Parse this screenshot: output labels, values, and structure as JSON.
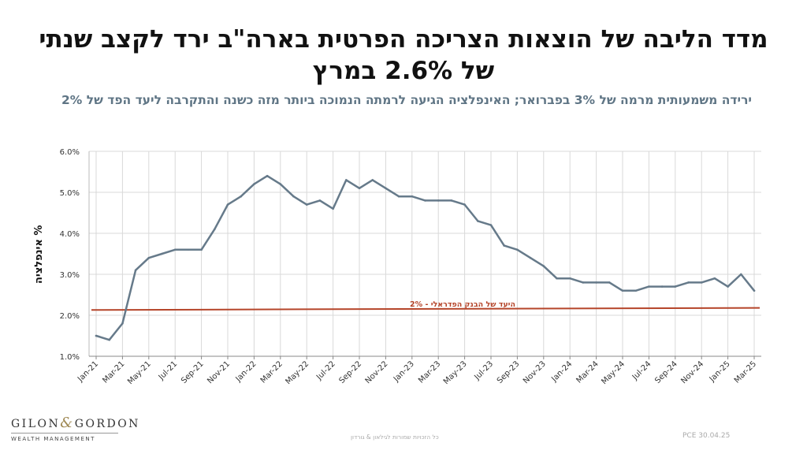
{
  "page": {
    "title": "מדד הליבה של הוצאות הצריכה הפרטית בארה\"ב ירד לקצב שנתי של 2.6% במרץ",
    "subtitle": "ירידה משמעותית מרמה של 3% בפברואר; האינפלציה הגיעה לרמתה הנמוכה ביותר מזה כשנה והתקרבה ליעד הפד של 2%",
    "footer_rights": "כל הזכויות שמורות לגילאון & גורדון",
    "footer_source": "PCE 30.04.25"
  },
  "logo": {
    "name_left": "GILON",
    "amp": "&",
    "name_right": "GORDON",
    "sub": "WEALTH MANAGEMENT"
  },
  "colors": {
    "series": "#667a8a",
    "target": "#b5452a",
    "grid": "#d9d9d9",
    "text": "#333333"
  },
  "chart_data": {
    "type": "line",
    "title": "",
    "xlabel": "",
    "ylabel": "% אינפלציה",
    "ylim": [
      1.0,
      6.0
    ],
    "yticks": [
      "1.0%",
      "2.0%",
      "3.0%",
      "4.0%",
      "5.0%",
      "6.0%"
    ],
    "xtick_labels": [
      "Jan-21",
      "Mar-21",
      "May-21",
      "Jul-21",
      "Sep-21",
      "Nov-21",
      "Jan-22",
      "Mar-22",
      "May-22",
      "Jul-22",
      "Sep-22",
      "Nov-22",
      "Jan-23",
      "Mar-23",
      "May-23",
      "Jul-23",
      "Sep-23",
      "Nov-23",
      "Jan-24",
      "Mar-24",
      "May-24",
      "Jul-24",
      "Sep-24",
      "Nov-24",
      "Jan-25",
      "Mar-25"
    ],
    "grid": true,
    "x": [
      "Jan-21",
      "Feb-21",
      "Mar-21",
      "Apr-21",
      "May-21",
      "Jun-21",
      "Jul-21",
      "Aug-21",
      "Sep-21",
      "Oct-21",
      "Nov-21",
      "Dec-21",
      "Jan-22",
      "Feb-22",
      "Mar-22",
      "Apr-22",
      "May-22",
      "Jun-22",
      "Jul-22",
      "Aug-22",
      "Sep-22",
      "Oct-22",
      "Nov-22",
      "Dec-22",
      "Jan-23",
      "Feb-23",
      "Mar-23",
      "Apr-23",
      "May-23",
      "Jun-23",
      "Jul-23",
      "Aug-23",
      "Sep-23",
      "Oct-23",
      "Nov-23",
      "Dec-23",
      "Jan-24",
      "Feb-24",
      "Mar-24",
      "Apr-24",
      "May-24",
      "Jun-24",
      "Jul-24",
      "Aug-24",
      "Sep-24",
      "Oct-24",
      "Nov-24",
      "Dec-24",
      "Jan-25",
      "Feb-25",
      "Mar-25"
    ],
    "series": [
      {
        "values": [
          1.5,
          1.4,
          1.8,
          3.1,
          3.4,
          3.5,
          3.6,
          3.6,
          3.6,
          4.1,
          4.7,
          4.9,
          5.2,
          5.4,
          5.2,
          4.9,
          4.7,
          4.8,
          4.6,
          5.3,
          5.1,
          5.3,
          5.1,
          4.9,
          4.9,
          4.8,
          4.8,
          4.8,
          4.7,
          4.3,
          4.2,
          3.7,
          3.6,
          3.4,
          3.2,
          2.9,
          2.9,
          2.8,
          2.8,
          2.8,
          2.6,
          2.6,
          2.7,
          2.7,
          2.7,
          2.8,
          2.8,
          2.9,
          2.7,
          3.0,
          2.6
        ]
      }
    ],
    "target_line": {
      "label": "היעד של הבנק הפדראלי - 2%",
      "start": 2.13,
      "end": 2.18
    }
  }
}
